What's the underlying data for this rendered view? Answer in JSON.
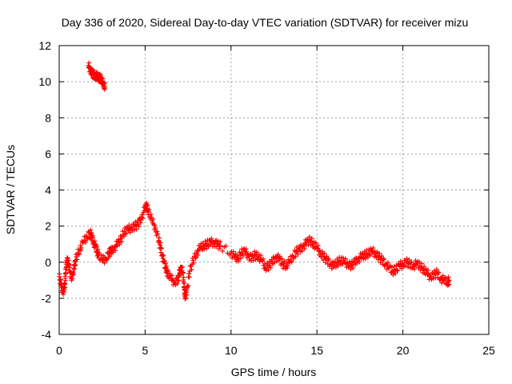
{
  "chart_data": {
    "type": "scatter",
    "title": "Day 336 of 2020, Sidereal Day-to-day VTEC variation (SDTVAR) for receiver mizu",
    "xlabel": "GPS time / hours",
    "ylabel": "SDTVAR / TECUs",
    "xlim": [
      0,
      25
    ],
    "ylim": [
      -4,
      12
    ],
    "xticks": [
      "0",
      "5",
      "10",
      "15",
      "20",
      "25"
    ],
    "yticks": [
      "-4",
      "-2",
      "0",
      "2",
      "4",
      "6",
      "8",
      "10",
      "12"
    ],
    "grid": true,
    "marker": "plus",
    "series": [
      {
        "name": "SDTVAR",
        "color": "#ff0000",
        "points": [
          [
            0.0,
            -0.8
          ],
          [
            0.1,
            -1.2
          ],
          [
            0.2,
            -1.6
          ],
          [
            0.3,
            -1.5
          ],
          [
            0.35,
            -0.9
          ],
          [
            0.4,
            -0.3
          ],
          [
            0.45,
            0.0
          ],
          [
            0.5,
            0.1
          ],
          [
            0.6,
            -0.3
          ],
          [
            0.7,
            -0.9
          ],
          [
            0.8,
            -0.6
          ],
          [
            0.9,
            -0.2
          ],
          [
            1.0,
            0.3
          ],
          [
            1.2,
            0.7
          ],
          [
            1.4,
            1.1
          ],
          [
            1.6,
            1.4
          ],
          [
            1.8,
            1.6
          ],
          [
            1.9,
            1.4
          ],
          [
            2.0,
            1.1
          ],
          [
            2.1,
            0.9
          ],
          [
            2.2,
            0.6
          ],
          [
            2.3,
            0.4
          ],
          [
            2.5,
            0.1
          ],
          [
            2.7,
            0.2
          ],
          [
            2.9,
            0.5
          ],
          [
            3.0,
            0.6
          ],
          [
            3.2,
            0.8
          ],
          [
            3.4,
            1.0
          ],
          [
            3.6,
            1.3
          ],
          [
            3.8,
            1.7
          ],
          [
            4.0,
            1.8
          ],
          [
            4.2,
            1.9
          ],
          [
            4.4,
            2.0
          ],
          [
            4.6,
            2.1
          ],
          [
            4.8,
            2.5
          ],
          [
            5.0,
            3.0
          ],
          [
            5.1,
            3.1
          ],
          [
            5.2,
            2.8
          ],
          [
            5.4,
            2.3
          ],
          [
            5.6,
            1.9
          ],
          [
            5.8,
            1.2
          ],
          [
            5.9,
            0.8
          ],
          [
            6.0,
            0.4
          ],
          [
            6.1,
            0.0
          ],
          [
            6.2,
            -0.3
          ],
          [
            6.3,
            -0.6
          ],
          [
            6.5,
            -0.9
          ],
          [
            6.7,
            -1.1
          ],
          [
            6.9,
            -1.0
          ],
          [
            7.0,
            -0.6
          ],
          [
            7.1,
            -0.3
          ],
          [
            7.2,
            -0.6
          ],
          [
            7.25,
            -1.1
          ],
          [
            7.3,
            -1.7
          ],
          [
            7.35,
            -2.0
          ],
          [
            7.45,
            -1.4
          ],
          [
            7.6,
            -0.5
          ],
          [
            7.8,
            0.1
          ],
          [
            8.0,
            0.5
          ],
          [
            8.2,
            0.8
          ],
          [
            8.4,
            0.9
          ],
          [
            8.6,
            1.0
          ],
          [
            8.8,
            1.1
          ],
          [
            9.0,
            1.1
          ],
          [
            9.2,
            1.0
          ],
          [
            9.4,
            0.9
          ],
          [
            10.0,
            0.5
          ],
          [
            10.2,
            0.3
          ],
          [
            10.4,
            0.2
          ],
          [
            10.6,
            0.5
          ],
          [
            10.8,
            0.6
          ],
          [
            11.0,
            0.4
          ],
          [
            11.2,
            0.2
          ],
          [
            11.4,
            0.4
          ],
          [
            11.6,
            0.3
          ],
          [
            11.8,
            0.1
          ],
          [
            12.0,
            -0.3
          ],
          [
            12.2,
            -0.2
          ],
          [
            12.4,
            0.0
          ],
          [
            12.6,
            0.3
          ],
          [
            12.8,
            0.2
          ],
          [
            13.0,
            -0.1
          ],
          [
            13.2,
            -0.2
          ],
          [
            13.4,
            0.0
          ],
          [
            13.6,
            0.3
          ],
          [
            13.8,
            0.6
          ],
          [
            14.0,
            0.7
          ],
          [
            14.2,
            0.9
          ],
          [
            14.4,
            1.1
          ],
          [
            14.6,
            1.2
          ],
          [
            14.8,
            1.0
          ],
          [
            15.0,
            0.8
          ],
          [
            15.2,
            0.5
          ],
          [
            15.4,
            0.3
          ],
          [
            15.6,
            0.1
          ],
          [
            15.8,
            -0.1
          ],
          [
            16.0,
            -0.2
          ],
          [
            16.2,
            0.0
          ],
          [
            16.4,
            0.1
          ],
          [
            16.6,
            0.0
          ],
          [
            16.8,
            -0.1
          ],
          [
            17.0,
            -0.2
          ],
          [
            17.2,
            0.0
          ],
          [
            17.4,
            0.2
          ],
          [
            17.6,
            0.3
          ],
          [
            17.8,
            0.4
          ],
          [
            18.0,
            0.5
          ],
          [
            18.2,
            0.6
          ],
          [
            18.4,
            0.5
          ],
          [
            18.6,
            0.3
          ],
          [
            18.8,
            0.1
          ],
          [
            19.0,
            -0.1
          ],
          [
            19.2,
            -0.3
          ],
          [
            19.4,
            -0.5
          ],
          [
            19.6,
            -0.4
          ],
          [
            19.8,
            -0.2
          ],
          [
            20.0,
            -0.1
          ],
          [
            20.2,
            0.0
          ],
          [
            20.4,
            -0.1
          ],
          [
            20.6,
            -0.2
          ],
          [
            20.8,
            -0.1
          ],
          [
            21.0,
            -0.2
          ],
          [
            21.2,
            -0.4
          ],
          [
            21.4,
            -0.6
          ],
          [
            21.6,
            -0.8
          ],
          [
            21.8,
            -0.7
          ],
          [
            22.0,
            -0.6
          ],
          [
            22.2,
            -0.9
          ],
          [
            22.4,
            -1.0
          ],
          [
            22.6,
            -1.1
          ],
          [
            22.7,
            -1.0
          ],
          [
            1.7,
            10.9
          ],
          [
            1.8,
            10.7
          ],
          [
            1.9,
            10.5
          ],
          [
            2.0,
            10.4
          ],
          [
            2.1,
            10.3
          ],
          [
            2.2,
            10.3
          ],
          [
            2.3,
            10.2
          ],
          [
            2.4,
            10.2
          ],
          [
            2.5,
            10.0
          ],
          [
            2.6,
            9.9
          ],
          [
            2.65,
            9.7
          ]
        ]
      }
    ]
  }
}
